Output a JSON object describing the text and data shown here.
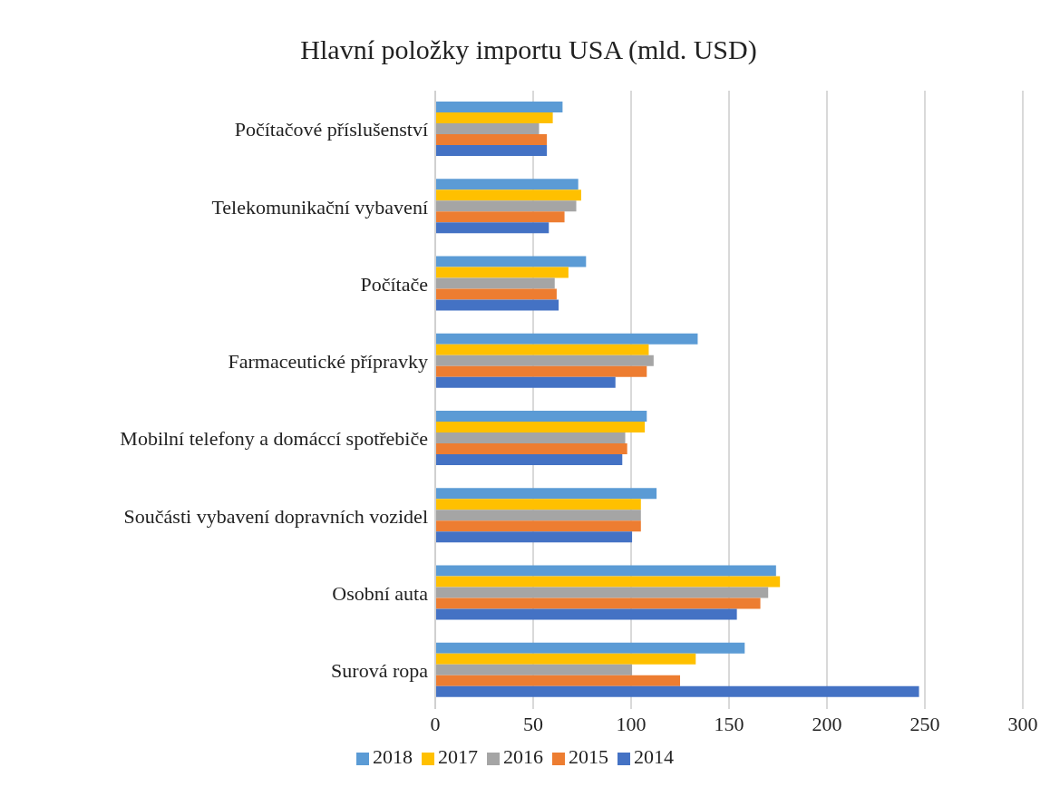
{
  "chart_data": {
    "type": "bar",
    "orientation": "horizontal",
    "title": "Hlavní položky importu USA (mld. USD)",
    "categories": [
      "Počítačové příslušenství",
      "Telekomunikační vybavení",
      "Počítače",
      "Farmaceutické přípravky",
      "Mobilní telefony a domáccí spotřebiče",
      "Součásti vybavení dopravních vozidel",
      "Osobní auta",
      "Surová ropa"
    ],
    "series": [
      {
        "name": "2018",
        "color": "#5b9bd5",
        "values": [
          65,
          73,
          77,
          134,
          108,
          113,
          174,
          158
        ]
      },
      {
        "name": "2017",
        "color": "#ffc000",
        "values": [
          60,
          74.5,
          68,
          109,
          107,
          105,
          176,
          133
        ]
      },
      {
        "name": "2016",
        "color": "#a5a5a5",
        "values": [
          53,
          72,
          61,
          111.5,
          97,
          105,
          170,
          100.5
        ]
      },
      {
        "name": "2015",
        "color": "#ed7d31",
        "values": [
          57,
          66,
          62,
          108,
          98,
          105,
          166,
          125
        ]
      },
      {
        "name": "2014",
        "color": "#4472c4",
        "values": [
          57,
          58,
          63,
          92,
          95.5,
          100.5,
          154,
          247
        ]
      }
    ],
    "xlim": [
      0,
      300
    ],
    "xticks": [
      0,
      50,
      100,
      150,
      200,
      250,
      300
    ],
    "grid": "x",
    "legend": "bottom"
  }
}
